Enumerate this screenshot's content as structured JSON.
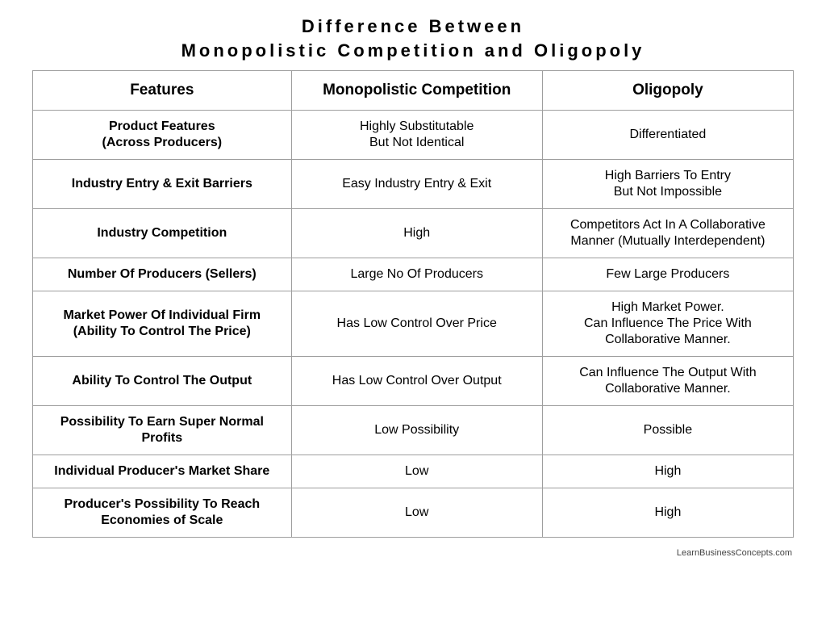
{
  "title_line1": "Difference Between",
  "title_line2": "Monopolistic Competition and Oligopoly",
  "columns": [
    "Features",
    "Monopolistic Competition",
    "Oligopoly"
  ],
  "rows": [
    {
      "feature": "Product Features\n(Across Producers)",
      "mc": "Highly Substitutable\nBut Not Identical",
      "ol": "Differentiated"
    },
    {
      "feature": "Industry Entry & Exit Barriers",
      "mc": "Easy Industry Entry & Exit",
      "ol": "High Barriers To Entry\nBut Not Impossible"
    },
    {
      "feature": "Industry Competition",
      "mc": "High",
      "ol": "Competitors Act In A Collaborative Manner (Mutually Interdependent)"
    },
    {
      "feature": "Number Of Producers (Sellers)",
      "mc": "Large No Of Producers",
      "ol": "Few Large Producers"
    },
    {
      "feature": "Market Power Of Individual Firm\n(Ability To Control The Price)",
      "mc": "Has Low Control Over Price",
      "ol": "High Market Power.\nCan Influence The Price With Collaborative Manner."
    },
    {
      "feature": "Ability To Control The Output",
      "mc": "Has Low Control Over Output",
      "ol": "Can Influence The Output With Collaborative Manner."
    },
    {
      "feature": "Possibility To Earn Super Normal Profits",
      "mc": "Low Possibility",
      "ol": "Possible"
    },
    {
      "feature": "Individual Producer's Market Share",
      "mc": "Low",
      "ol": "High"
    },
    {
      "feature": "Producer's Possibility To Reach Economies of Scale",
      "mc": "Low",
      "ol": "High"
    }
  ],
  "source": "LearnBusinessConcepts.com",
  "style": {
    "type": "table",
    "background_color": "#ffffff",
    "border_color": "#9e9e9e",
    "text_color": "#000000",
    "title_fontsize": 22,
    "title_letter_spacing": 4,
    "header_fontsize": 19,
    "cell_fontsize": 16,
    "font_family": "Arial",
    "col_widths_pct": [
      34,
      33,
      33
    ]
  }
}
